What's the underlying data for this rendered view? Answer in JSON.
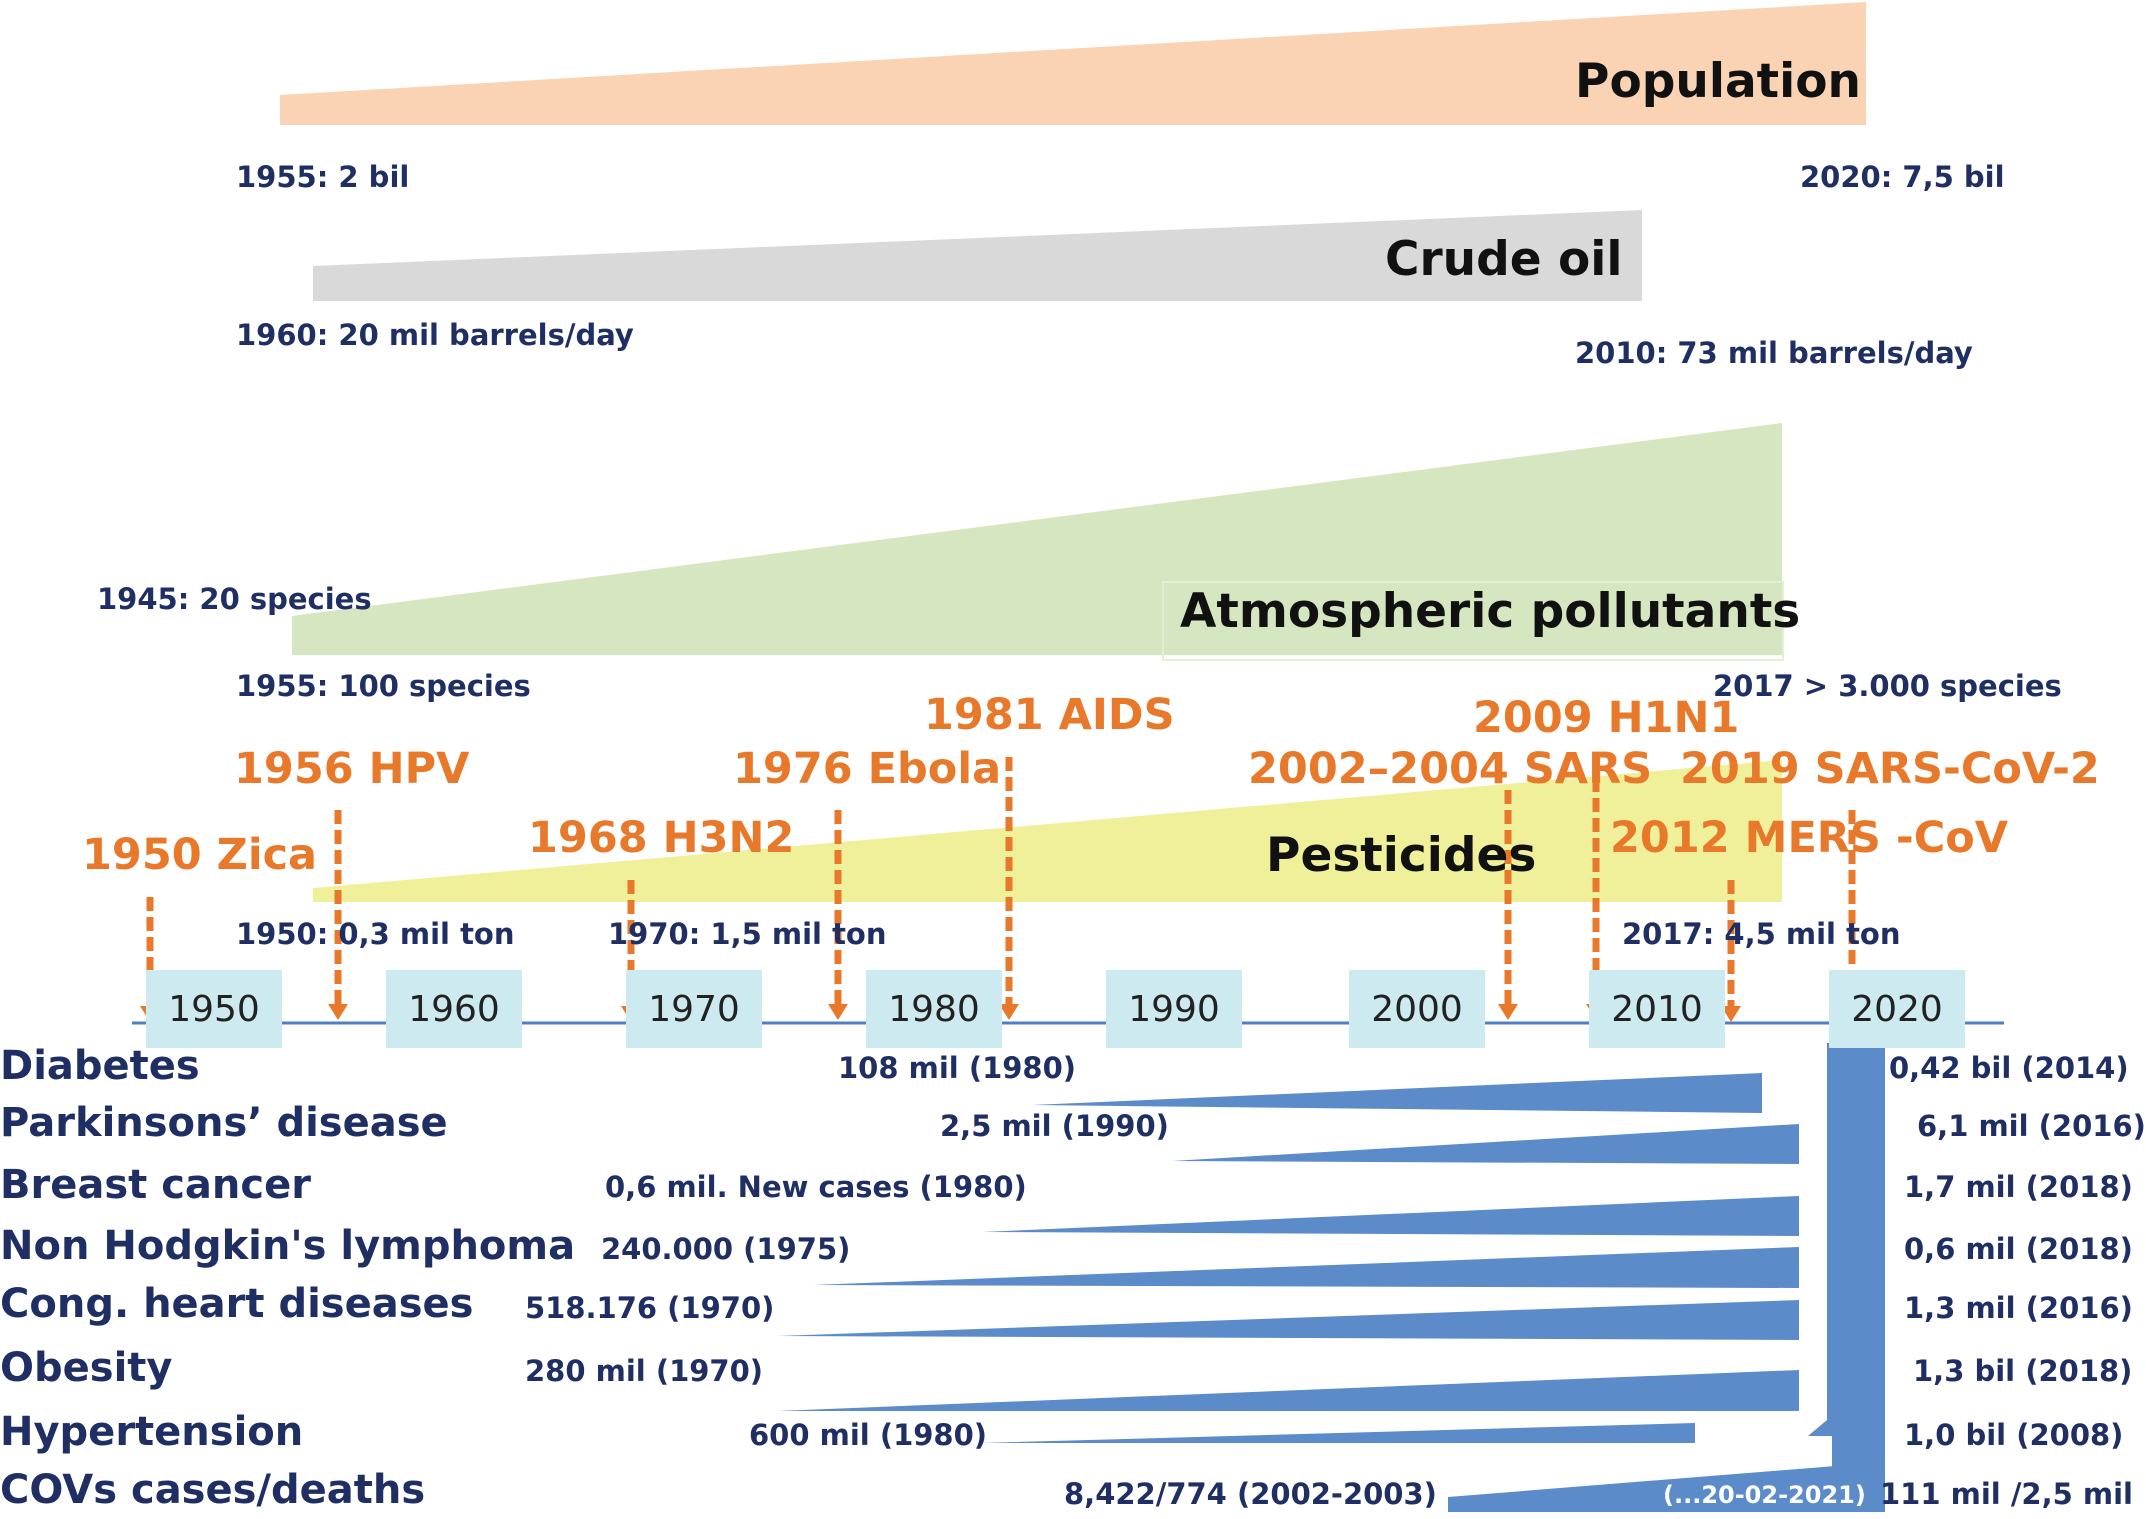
{
  "colors": {
    "population": "#fad3b4",
    "crude_oil": "#d9d9d9",
    "pollutants": "#d5e6c0",
    "pesticides": "#f1f09a",
    "disease": "#5b8bc9",
    "arrow": "#e8792a",
    "year_box": "#cdeaf0",
    "axis": "#4f7fc0",
    "navy_text": "#1f2f63"
  },
  "bands": {
    "population": {
      "label": "Population",
      "start": "1955: 2 bil",
      "end": "2020: 7,5 bil"
    },
    "crude_oil": {
      "label": "Crude oil",
      "start": "1960: 20 mil barrels/day",
      "end": "2010: 73 mil barrels/day"
    },
    "pollutants": {
      "label": "Atmospheric pollutants",
      "start_1945": "1945: 20 species",
      "start": "1955: 100 species",
      "end": "2017 > 3.000 species"
    },
    "pesticides": {
      "label": "Pesticides",
      "start": "1950: 0,3 mil  ton",
      "mid": "1970: 1,5 mil  ton",
      "end": "2017:  4,5 mil  ton"
    }
  },
  "epidemics": [
    {
      "label": "1950 Zica"
    },
    {
      "label": "1956 HPV"
    },
    {
      "label": "1968 H3N2"
    },
    {
      "label": "1976 Ebola"
    },
    {
      "label": "1981 AIDS"
    },
    {
      "label": "2002–2004 SARS"
    },
    {
      "label": "2009 H1N1"
    },
    {
      "label": "2012 MERS -CoV"
    },
    {
      "label": "2019 SARS-CoV-2"
    }
  ],
  "timeline": {
    "years": [
      "1950",
      "1960",
      "1970",
      "1980",
      "1990",
      "2000",
      "2010",
      "2020"
    ]
  },
  "diseases": [
    {
      "name": "Diabetes",
      "start": "108 mil (1980)",
      "end": "0,42 bil (2014)"
    },
    {
      "name": "Parkinsons’  disease",
      "start": "2,5 mil (1990)",
      "end": "6,1 mil (2016)"
    },
    {
      "name": "Breast cancer",
      "start": "0,6 mil. New cases (1980)",
      "end": "1,7 mil (2018)"
    },
    {
      "name": "Non Hodgkin's   lymphoma",
      "start": "240.000 (1975)",
      "end": "0,6 mil (2018)"
    },
    {
      "name": "Cong. heart diseases",
      "start": "518.176 (1970)",
      "end": "1,3 mil (2016)"
    },
    {
      "name": "Obesity",
      "start": "280 mil (1970)",
      "end": "1,3 bil (2018)"
    },
    {
      "name": "Hypertension",
      "start": "600 mil (1980)",
      "end": "1,0 bil (2008)"
    },
    {
      "name": "COVs cases/deaths",
      "start": "8,422/774 (2002-2003)",
      "end": "111 mil /2,5 mil",
      "note": "(...20-02-2021)"
    }
  ]
}
